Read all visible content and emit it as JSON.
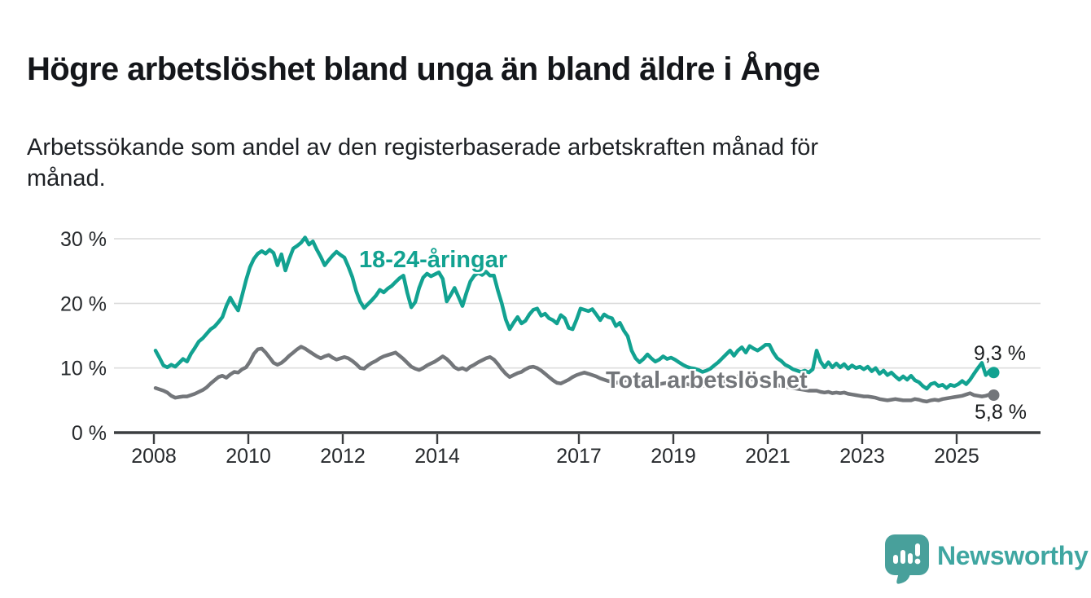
{
  "header": {
    "title": "Högre arbetslöshet bland unga än bland äldre i Ånge",
    "subtitle_line1": "Arbetssökande som andel av den registerbaserade arbetskraften månad för",
    "subtitle_line2": "månad."
  },
  "chart_data": {
    "type": "line",
    "title": "Högre arbetslöshet bland unga än bland äldre i Ånge",
    "subtitle": "Arbetssökande som andel av den registerbaserade arbetskraften månad för månad.",
    "unit": "%",
    "frequency": "monthly",
    "x_start_year": 2008,
    "x_start_month": 1,
    "ylim": [
      0,
      32
    ],
    "grid": true,
    "legend": "inline-labels",
    "y_ticks": [
      {
        "value": 0,
        "label": "0 %"
      },
      {
        "value": 10,
        "label": "10 %"
      },
      {
        "value": 20,
        "label": "20 %"
      },
      {
        "value": 30,
        "label": "30 %"
      }
    ],
    "x_ticks": [
      {
        "value": 2008,
        "label": "2008"
      },
      {
        "value": 2010,
        "label": "2010"
      },
      {
        "value": 2012,
        "label": "2012"
      },
      {
        "value": 2014,
        "label": "2014"
      },
      {
        "value": 2017,
        "label": "2017"
      },
      {
        "value": 2019,
        "label": "2019"
      },
      {
        "value": 2021,
        "label": "2021"
      },
      {
        "value": 2023,
        "label": "2023"
      },
      {
        "value": 2025,
        "label": "2025"
      }
    ],
    "series": [
      {
        "name": "18-24-åringar",
        "color": "#12a291",
        "end_label": "9,3 %",
        "end_value": 9.3,
        "values": [
          12.7,
          11.6,
          10.4,
          10.1,
          10.5,
          10.2,
          10.8,
          11.4,
          11.0,
          12.2,
          13.1,
          14.1,
          14.6,
          15.3,
          16.0,
          16.4,
          17.1,
          17.9,
          19.6,
          20.9,
          19.8,
          18.9,
          21.2,
          23.6,
          25.6,
          26.9,
          27.7,
          28.1,
          27.7,
          28.3,
          27.8,
          25.9,
          27.6,
          25.1,
          26.9,
          28.5,
          28.9,
          29.4,
          30.2,
          29.1,
          29.6,
          28.3,
          27.2,
          25.9,
          26.7,
          27.4,
          28.0,
          27.5,
          27.1,
          25.7,
          24.1,
          21.9,
          20.3,
          19.3,
          19.9,
          20.5,
          21.2,
          22.1,
          21.7,
          22.3,
          22.7,
          23.3,
          23.9,
          24.3,
          21.6,
          19.4,
          20.2,
          22.4,
          24.0,
          24.6,
          24.2,
          24.5,
          24.8,
          23.8,
          20.3,
          21.3,
          22.4,
          21.0,
          19.6,
          21.6,
          23.4,
          24.3,
          24.7,
          24.4,
          24.9,
          24.3,
          24.3,
          22.0,
          20.0,
          17.5,
          16.0,
          17.0,
          17.9,
          16.9,
          17.3,
          18.3,
          19.0,
          19.2,
          18.1,
          18.4,
          17.7,
          17.4,
          16.9,
          18.2,
          17.7,
          16.2,
          16.0,
          17.5,
          19.2,
          19.0,
          18.8,
          19.1,
          18.3,
          17.4,
          18.3,
          17.9,
          17.7,
          16.5,
          17.0,
          15.8,
          14.9,
          12.7,
          11.5,
          10.9,
          11.4,
          12.1,
          11.5,
          11.0,
          11.3,
          11.8,
          11.4,
          11.6,
          11.3,
          10.9,
          10.5,
          10.2,
          10.0,
          9.9,
          9.7,
          9.4,
          9.6,
          9.9,
          10.4,
          10.9,
          11.5,
          12.1,
          12.7,
          11.9,
          12.7,
          13.2,
          12.4,
          13.4,
          13.0,
          12.7,
          13.1,
          13.6,
          13.6,
          12.4,
          11.5,
          11.1,
          10.5,
          10.2,
          9.8,
          9.6,
          9.4,
          9.6,
          9.3,
          9.8,
          12.7,
          11.0,
          10.1,
          10.9,
          10.1,
          10.7,
          10.1,
          10.6,
          9.9,
          10.4,
          10.0,
          10.2,
          9.8,
          10.2,
          9.5,
          10.0,
          9.1,
          9.6,
          8.9,
          9.3,
          8.7,
          8.2,
          8.7,
          8.2,
          8.8,
          8.1,
          7.8,
          7.2,
          6.8,
          7.5,
          7.7,
          7.2,
          7.4,
          6.9,
          7.4,
          7.2,
          7.5,
          8.0,
          7.5,
          8.2,
          9.1,
          10.0,
          10.8,
          8.9,
          9.6,
          9.3
        ]
      },
      {
        "name": "Total arbetslöshet",
        "color": "#73767a",
        "end_label": "5,8 %",
        "end_value": 5.8,
        "values": [
          6.9,
          6.7,
          6.5,
          6.2,
          5.7,
          5.4,
          5.5,
          5.6,
          5.6,
          5.8,
          6.0,
          6.3,
          6.6,
          7.0,
          7.6,
          8.1,
          8.6,
          8.8,
          8.5,
          9.0,
          9.4,
          9.3,
          9.8,
          10.1,
          11.0,
          12.2,
          12.9,
          13.0,
          12.4,
          11.6,
          10.8,
          10.5,
          10.8,
          11.3,
          11.9,
          12.4,
          12.9,
          13.3,
          13.0,
          12.6,
          12.2,
          11.8,
          11.5,
          11.8,
          12.0,
          11.6,
          11.3,
          11.5,
          11.7,
          11.5,
          11.1,
          10.6,
          10.0,
          9.9,
          10.4,
          10.8,
          11.1,
          11.5,
          11.8,
          12.0,
          12.2,
          12.4,
          11.9,
          11.4,
          10.8,
          10.2,
          9.9,
          9.7,
          10.0,
          10.4,
          10.7,
          11.0,
          11.4,
          11.8,
          11.4,
          10.8,
          10.1,
          9.8,
          10.0,
          9.7,
          10.2,
          10.5,
          10.9,
          11.2,
          11.5,
          11.7,
          11.3,
          10.6,
          9.8,
          9.1,
          8.6,
          8.9,
          9.2,
          9.4,
          9.8,
          10.1,
          10.2,
          10.0,
          9.6,
          9.1,
          8.6,
          8.1,
          7.7,
          7.6,
          7.9,
          8.2,
          8.6,
          8.9,
          9.1,
          9.3,
          9.1,
          8.9,
          8.7,
          8.4,
          8.2,
          8.0,
          7.9,
          7.7,
          7.8,
          8.0,
          8.2,
          8.4,
          8.6,
          8.3,
          8.0,
          7.8,
          7.6,
          7.4,
          7.5,
          7.6,
          7.7,
          7.8,
          7.8,
          7.7,
          7.6,
          7.5,
          7.4,
          7.4,
          7.3,
          7.2,
          7.3,
          7.4,
          7.5,
          7.6,
          7.8,
          8.0,
          8.3,
          8.6,
          8.7,
          8.5,
          8.4,
          8.3,
          8.2,
          8.1,
          8.0,
          7.9,
          7.6,
          7.5,
          7.4,
          7.2,
          7.1,
          7.0,
          6.9,
          6.8,
          6.7,
          6.6,
          6.5,
          6.5,
          6.5,
          6.3,
          6.2,
          6.3,
          6.1,
          6.2,
          6.1,
          6.2,
          6.0,
          5.9,
          5.8,
          5.7,
          5.6,
          5.6,
          5.5,
          5.4,
          5.2,
          5.1,
          5.0,
          5.1,
          5.2,
          5.1,
          5.0,
          5.0,
          5.0,
          5.2,
          5.1,
          4.9,
          4.8,
          5.0,
          5.1,
          5.0,
          5.2,
          5.3,
          5.4,
          5.5,
          5.6,
          5.7,
          5.9,
          6.1,
          5.8,
          5.7,
          5.6,
          5.7,
          5.9,
          5.8
        ]
      }
    ]
  },
  "footer": {
    "brand": "Newsworthy"
  },
  "colors": {
    "accent_teal": "#12a291",
    "series_gray": "#73767a",
    "axis": "#3b3e40",
    "grid": "#dcdcdc",
    "text": "#16181a",
    "brand_teal": "#3fa6a1",
    "background": "#ffffff"
  }
}
